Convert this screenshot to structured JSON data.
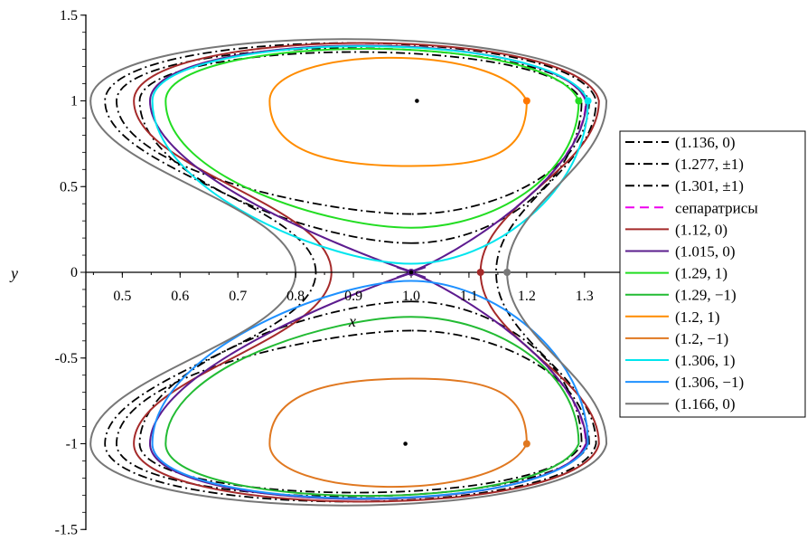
{
  "chart_data": {
    "type": "line",
    "title": "",
    "xlabel": "x",
    "ylabel": "y",
    "xlim": [
      0.44,
      1.345
    ],
    "ylim": [
      -1.5,
      1.5
    ],
    "xticks": [
      "0.5",
      "0.6",
      "0.7",
      "0.8",
      "0.9",
      "1.0",
      "1.1",
      "1.2",
      "1.3"
    ],
    "yticks": [
      "1.5",
      "1",
      "0.5",
      "0",
      "-0.5",
      "-1",
      "-1.5"
    ],
    "legend_position": "right",
    "series": [
      {
        "name": "(1.136, 0)",
        "color": "#000000",
        "style": "dashdot",
        "bottom": 0.34,
        "xmin": 0.49,
        "xmax": 1.308,
        "top": 1.375
      },
      {
        "name": "(1.277, ±1)",
        "color": "#000000",
        "style": "dashdot",
        "bottom": 0.17,
        "xmin": 0.53,
        "xmax": 1.295,
        "top": 1.345
      },
      {
        "name": "(1.301, ±1)",
        "color": "#000000",
        "style": "dashdot",
        "bottom": 0.0,
        "xmin": 0.47,
        "xmax": 1.32,
        "top": 1.41,
        "left_x0": 0.835,
        "right_x0": 1.147
      },
      {
        "name": "сепаратрисы",
        "color": "#ee00ee",
        "style": "dash",
        "bottom": 0.0,
        "xmin": 0.548,
        "xmax": 1.302,
        "top": 1.395
      },
      {
        "name": "(1.12, 0)",
        "color": "#a52a2a",
        "style": "solid",
        "bottom": 0.0,
        "xmin": 0.52,
        "xmax": 1.325,
        "top": 1.41,
        "left_x0": 0.862,
        "right_x0": 1.12
      },
      {
        "name": "(1.015, 0)",
        "color": "#5b1e8e",
        "style": "solid",
        "bottom": 0.0,
        "xmin": 0.548,
        "xmax": 1.303,
        "top": 1.395
      },
      {
        "name": "(1.29, 1)",
        "color": "#22dd22",
        "style": "solid",
        "bottom": 0.26,
        "xmin": 0.575,
        "xmax": 1.29,
        "top": 1.37
      },
      {
        "name": "(1.29, −1)",
        "color": "#22bb33",
        "style": "solid",
        "bottom": 0.26,
        "xmin": 0.575,
        "xmax": 1.29,
        "top": 1.37
      },
      {
        "name": "(1.2, 1)",
        "color": "#ff8c00",
        "style": "solid",
        "bottom": 0.62,
        "xmin": 0.755,
        "xmax": 1.2,
        "top": 1.3
      },
      {
        "name": "(1.2,  −1)",
        "color": "#e07820",
        "style": "solid",
        "bottom": 0.62,
        "xmin": 0.755,
        "xmax": 1.2,
        "top": 1.3
      },
      {
        "name": "(1.306, 1)",
        "color": "#00e5ee",
        "style": "solid",
        "bottom": 0.05,
        "xmin": 0.552,
        "xmax": 1.306,
        "top": 1.39
      },
      {
        "name": "(1.306, −1)",
        "color": "#1e90ff",
        "style": "solid",
        "bottom": 0.05,
        "xmin": 0.552,
        "xmax": 1.306,
        "top": 1.39
      },
      {
        "name": "(1.166, 0)",
        "color": "#777777",
        "style": "solid",
        "bottom": 0.0,
        "xmin": 0.445,
        "xmax": 1.338,
        "top": 1.44,
        "left_x0": 0.8,
        "right_x0": 1.166
      }
    ],
    "points": [
      {
        "x": 1.2,
        "y": 1,
        "color": "#ff7700"
      },
      {
        "x": 1.2,
        "y": -1,
        "color": "#e07820"
      },
      {
        "x": 1.29,
        "y": 1,
        "color": "#22dd22"
      },
      {
        "x": 1.306,
        "y": 1,
        "color": "#00e5ee"
      },
      {
        "x": 1.12,
        "y": 0,
        "color": "#a52a2a"
      },
      {
        "x": 1.166,
        "y": 0,
        "color": "#777777"
      },
      {
        "x": 1.0,
        "y": 0,
        "color": "#5b1e8e"
      }
    ],
    "equilibria": [
      {
        "x": 1.01,
        "y": 1
      },
      {
        "x": 0.99,
        "y": -1
      },
      {
        "x": 1.0,
        "y": 0
      }
    ]
  }
}
